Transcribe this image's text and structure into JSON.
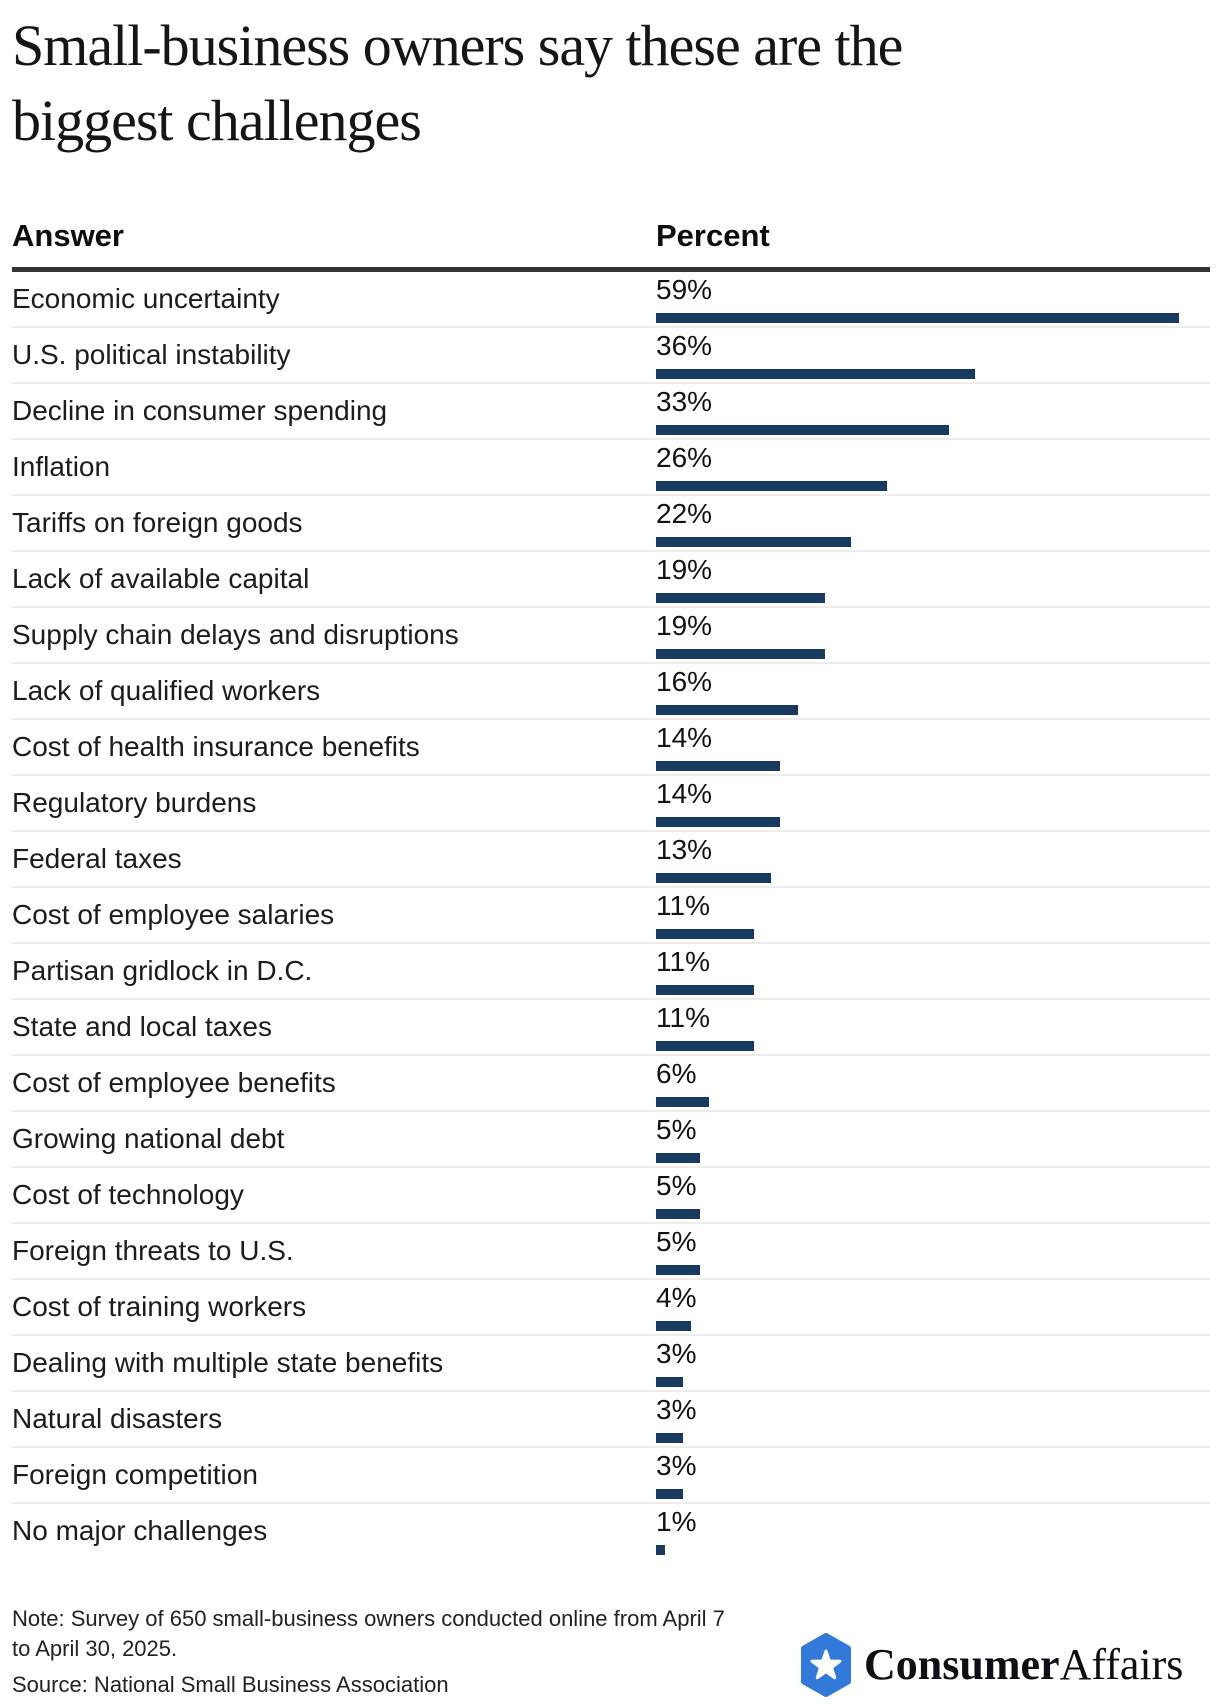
{
  "header": {
    "title": "Small-business owners say these are the biggest challenges",
    "title_line1": "Small-business owners say these are the",
    "title_line2": "biggest challenges"
  },
  "table": {
    "answer_header": "Answer",
    "percent_header": "Percent"
  },
  "chart_data": {
    "type": "bar",
    "orientation": "horizontal",
    "title": "Small-business owners say these are the biggest challenges",
    "xlabel": "Percent",
    "ylabel": "Answer",
    "xlim": [
      0,
      59
    ],
    "grid": false,
    "bar_color": "#183A60",
    "categories": [
      "Economic uncertainty",
      "U.S. political instability",
      "Decline in consumer spending",
      "Inflation",
      "Tariffs on foreign goods",
      "Lack of available capital",
      "Supply chain delays and disruptions",
      "Lack of qualified workers",
      "Cost of health insurance benefits",
      "Regulatory burdens",
      "Federal taxes",
      "Cost of employee salaries",
      "Partisan gridlock in D.C.",
      "State and local taxes",
      "Cost of employee benefits",
      "Growing national debt",
      "Cost of technology",
      "Foreign threats to U.S.",
      "Cost of training workers",
      "Dealing with multiple state benefits",
      "Natural disasters",
      "Foreign competition",
      "No major challenges"
    ],
    "values": [
      59,
      36,
      33,
      26,
      22,
      19,
      19,
      16,
      14,
      14,
      13,
      11,
      11,
      11,
      6,
      5,
      5,
      5,
      4,
      3,
      3,
      3,
      1
    ],
    "value_labels": [
      "59%",
      "36%",
      "33%",
      "26%",
      "22%",
      "19%",
      "19%",
      "16%",
      "14%",
      "14%",
      "13%",
      "11%",
      "11%",
      "11%",
      "6%",
      "5%",
      "5%",
      "5%",
      "4%",
      "3%",
      "3%",
      "3%",
      "1%"
    ]
  },
  "footer": {
    "note": "Note: Survey of 650 small-business owners conducted online from April 7 to April 30, 2025.",
    "source": "Source: National Small Business Association"
  },
  "logo": {
    "brand_bold": "Consumer",
    "brand_regular": "Affairs",
    "hex_color": "#3379DA",
    "star_color": "#FFFFFF"
  }
}
